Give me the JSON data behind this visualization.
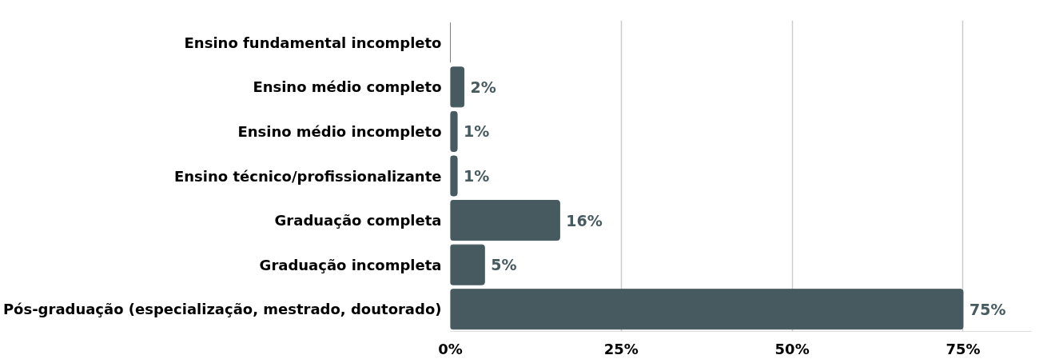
{
  "chart_data": {
    "type": "bar",
    "orientation": "horizontal",
    "categories": [
      "Ensino fundamental incompleto",
      "Ensino médio completo",
      "Ensino médio incompleto",
      "Ensino técnico/profissionalizante",
      "Graduação completa",
      "Graduação incompleta",
      "Pós-graduação (especialização, mestrado, doutorado)"
    ],
    "values": [
      0,
      2,
      1,
      1,
      16,
      5,
      75
    ],
    "value_labels": [
      null,
      "2%",
      "1%",
      "1%",
      "16%",
      "5%",
      "75%"
    ],
    "color": "#465a60",
    "xlim": [
      0,
      85
    ],
    "xticks": [
      {
        "value": 0,
        "label": "0%"
      },
      {
        "value": 25,
        "label": "25%"
      },
      {
        "value": 50,
        "label": "50%"
      },
      {
        "value": 75,
        "label": "75%"
      }
    ],
    "grid": "x"
  }
}
